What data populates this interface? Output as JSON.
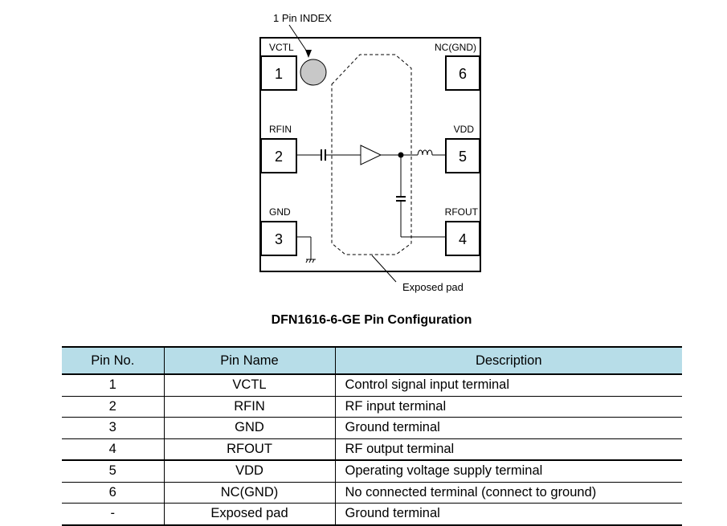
{
  "diagram": {
    "index_label": "1 Pin INDEX",
    "exposed_pad_label": "Exposed pad",
    "pins": [
      {
        "num": "1",
        "name": "VCTL"
      },
      {
        "num": "2",
        "name": "RFIN"
      },
      {
        "num": "3",
        "name": "GND"
      },
      {
        "num": "4",
        "name": "RFOUT"
      },
      {
        "num": "5",
        "name": "VDD"
      },
      {
        "num": "6",
        "name": "NC(GND)"
      }
    ]
  },
  "title": "DFN1616-6-GE Pin Configuration",
  "table": {
    "headers": [
      "Pin No.",
      "Pin Name",
      "Description"
    ],
    "header_color": "#b7dde8",
    "rows": [
      [
        "1",
        "VCTL",
        "Control signal input terminal"
      ],
      [
        "2",
        "RFIN",
        "RF input terminal"
      ],
      [
        "3",
        "GND",
        "Ground terminal"
      ],
      [
        "4",
        "RFOUT",
        "RF output terminal"
      ],
      [
        "5",
        "VDD",
        "Operating voltage supply terminal"
      ],
      [
        "6",
        "NC(GND)",
        "No connected terminal (connect to ground)"
      ],
      [
        "-",
        "Exposed pad",
        "Ground terminal"
      ]
    ]
  }
}
